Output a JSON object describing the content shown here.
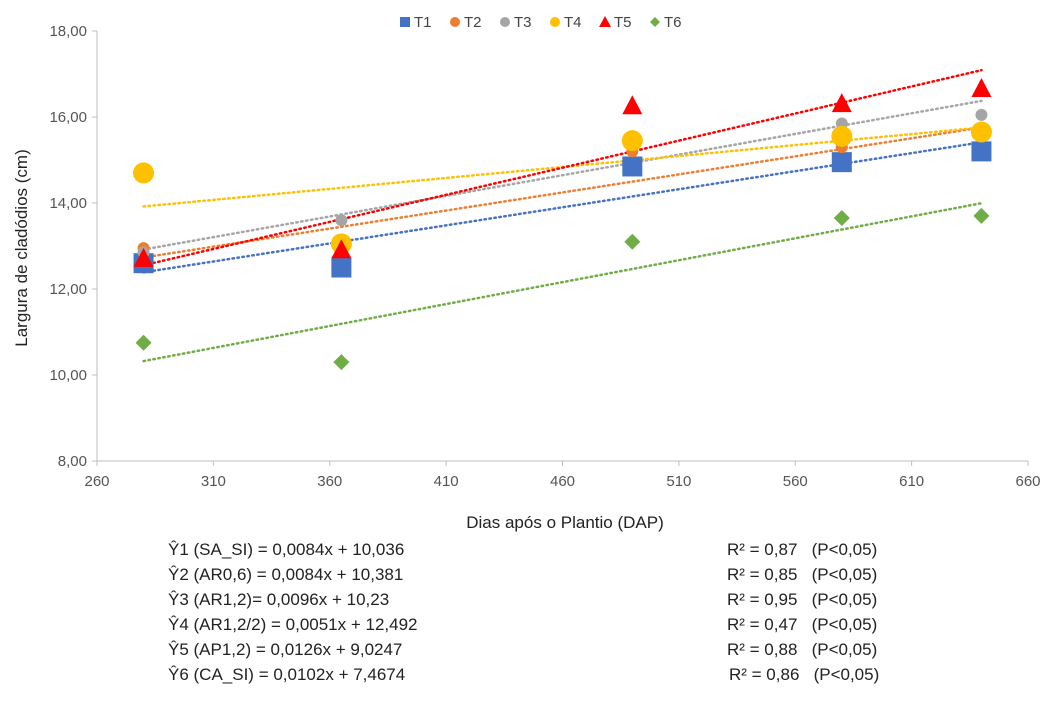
{
  "chart_data": {
    "type": "scatter",
    "title": "",
    "xlabel": "Dias após o Plantio (DAP)",
    "ylabel": "Largura de cladódios (cm)",
    "xlim": [
      260,
      660
    ],
    "ylim": [
      8,
      18
    ],
    "x_ticks": [
      "260",
      "310",
      "360",
      "410",
      "460",
      "510",
      "560",
      "610",
      "660"
    ],
    "y_ticks": [
      "8,00",
      "10,00",
      "12,00",
      "14,00",
      "16,00",
      "18,00"
    ],
    "grid": false,
    "legend_position": "top",
    "x": [
      280,
      365,
      490,
      580,
      640
    ],
    "series": [
      {
        "name": "T1",
        "marker": "square",
        "color": "#4472C4",
        "values": [
          12.6,
          12.5,
          14.85,
          14.95,
          15.2
        ],
        "trend": {
          "slope": 0.0084,
          "intercept": 10.036
        }
      },
      {
        "name": "T2",
        "marker": "circle-small",
        "color": "#ED7D31",
        "values": [
          12.95,
          13.0,
          15.2,
          15.3,
          15.6
        ],
        "trend": {
          "slope": 0.0084,
          "intercept": 10.381
        }
      },
      {
        "name": "T3",
        "marker": "circle-small",
        "color": "#A5A5A5",
        "values": [
          12.85,
          13.6,
          15.4,
          15.85,
          16.05
        ],
        "trend": {
          "slope": 0.0096,
          "intercept": 10.23
        }
      },
      {
        "name": "T4",
        "marker": "circle",
        "color": "#FFC000",
        "values": [
          14.7,
          13.05,
          15.45,
          15.55,
          15.65
        ],
        "trend": {
          "slope": 0.0051,
          "intercept": 12.492
        }
      },
      {
        "name": "T5",
        "marker": "triangle",
        "color": "#FF0000",
        "values": [
          12.7,
          12.9,
          16.25,
          16.3,
          16.65
        ],
        "trend": {
          "slope": 0.0126,
          "intercept": 9.0247
        }
      },
      {
        "name": "T6",
        "marker": "diamond",
        "color": "#70AD47",
        "values": [
          10.75,
          10.3,
          13.1,
          13.65,
          13.7
        ],
        "trend": {
          "slope": 0.0102,
          "intercept": 7.4674
        }
      }
    ],
    "annotations": [
      {
        "equation": "Ŷ1 (SA_SI) = 0,0084x + 10,036",
        "r2": "R² = 0,87   (P<0,05)"
      },
      {
        "equation": "Ŷ2 (AR0,6) = 0,0084x + 10,381",
        "r2": "R² = 0,85   (P<0,05)"
      },
      {
        "equation": "Ŷ3 (AR1,2)= 0,0096x + 10,23",
        "r2": "R² = 0,95   (P<0,05)"
      },
      {
        "equation": "Ŷ4 (AR1,2/2) = 0,0051x + 12,492",
        "r2": "R² = 0,47   (P<0,05)"
      },
      {
        "equation": "Ŷ5 (AP1,2) = 0,0126x + 9,0247",
        "r2": "R² = 0,88   (P<0,05)"
      },
      {
        "equation": "Ŷ6 (CA_SI) = 0,0102x + 7,4674",
        "r2": "R² = 0,86   (P<0,05)"
      }
    ]
  }
}
